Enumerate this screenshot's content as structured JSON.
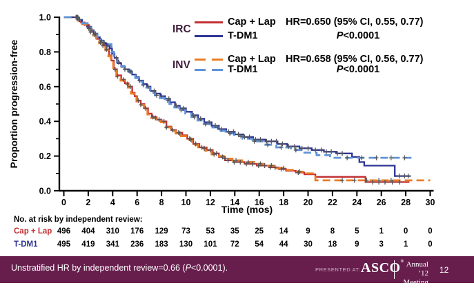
{
  "colors": {
    "irc_cap_lap": "#C22E31",
    "irc_tdm1": "#2D3494",
    "inv_cap_lap": "#E97C26",
    "inv_tdm1": "#5F93D8",
    "group_label": "#3F1D3B",
    "censor": "#555555",
    "axis": "#000000",
    "footer_bg": "#671E4D",
    "footer_text": "#FFFFFF",
    "risk_cap_lap_label": "#C22E31",
    "risk_tdm1_label": "#2D3494"
  },
  "chart_data": {
    "type": "line",
    "subtype": "kaplan-meier-step",
    "title": "",
    "xlabel": "Time (mos)",
    "ylabel": "Proportion progression-free",
    "xlim": [
      0,
      30
    ],
    "ylim": [
      0.0,
      1.0
    ],
    "x_ticks": [
      0,
      2,
      4,
      6,
      8,
      10,
      12,
      14,
      16,
      18,
      20,
      22,
      24,
      26,
      28,
      30
    ],
    "y_ticks": [
      "0.0",
      "0.2",
      "0.4",
      "0.6",
      "0.8",
      "1.0"
    ],
    "y_minor_tick_step": 0.1,
    "grid": false,
    "legend_position": "upper right",
    "series": [
      {
        "id": "irc-cap-lap",
        "name": "IRC Cap + Lap",
        "color": "irc_cap_lap",
        "style": "solid",
        "points": [
          [
            0,
            1.0
          ],
          [
            1.1,
            0.985
          ],
          [
            1.4,
            0.97
          ],
          [
            1.7,
            0.955
          ],
          [
            2.0,
            0.935
          ],
          [
            2.2,
            0.915
          ],
          [
            2.45,
            0.9
          ],
          [
            2.7,
            0.875
          ],
          [
            2.95,
            0.855
          ],
          [
            3.2,
            0.84
          ],
          [
            3.45,
            0.815
          ],
          [
            3.7,
            0.78
          ],
          [
            3.9,
            0.75
          ],
          [
            4.1,
            0.7
          ],
          [
            4.35,
            0.665
          ],
          [
            4.7,
            0.64
          ],
          [
            5.0,
            0.62
          ],
          [
            5.3,
            0.6
          ],
          [
            5.6,
            0.565
          ],
          [
            5.8,
            0.545
          ],
          [
            6.0,
            0.52
          ],
          [
            6.3,
            0.5
          ],
          [
            6.6,
            0.475
          ],
          [
            6.9,
            0.445
          ],
          [
            7.2,
            0.425
          ],
          [
            7.6,
            0.41
          ],
          [
            8.0,
            0.4
          ],
          [
            8.4,
            0.37
          ],
          [
            8.8,
            0.35
          ],
          [
            9.2,
            0.335
          ],
          [
            9.7,
            0.32
          ],
          [
            10.1,
            0.3
          ],
          [
            10.6,
            0.27
          ],
          [
            11.1,
            0.25
          ],
          [
            11.7,
            0.235
          ],
          [
            12.2,
            0.215
          ],
          [
            12.7,
            0.195
          ],
          [
            13.2,
            0.175
          ],
          [
            13.9,
            0.165
          ],
          [
            14.8,
            0.155
          ],
          [
            15.8,
            0.145
          ],
          [
            16.8,
            0.135
          ],
          [
            17.6,
            0.125
          ],
          [
            18.2,
            0.115
          ],
          [
            19.0,
            0.105
          ],
          [
            19.7,
            0.095
          ],
          [
            20.6,
            0.08
          ],
          [
            24.7,
            0.05
          ],
          [
            28.3,
            0.05
          ]
        ],
        "censors": [
          1.0,
          1.25,
          2.05,
          2.5,
          3.0,
          3.5,
          4.2,
          4.9,
          5.45,
          6.1,
          6.7,
          7.3,
          7.8,
          8.2,
          8.9,
          9.4,
          10.3,
          10.8,
          11.3,
          12.0,
          12.5,
          13.0,
          13.45,
          13.95,
          14.45,
          14.95,
          15.45,
          15.95,
          16.45,
          16.9,
          17.3,
          17.8,
          19.2,
          25.3,
          25.8,
          26.3,
          26.9,
          27.5
        ]
      },
      {
        "id": "irc-tdm1",
        "name": "IRC T-DM1",
        "color": "irc_tdm1",
        "style": "solid",
        "points": [
          [
            0,
            1.0
          ],
          [
            1.15,
            0.985
          ],
          [
            1.5,
            0.965
          ],
          [
            1.9,
            0.945
          ],
          [
            2.2,
            0.925
          ],
          [
            2.45,
            0.905
          ],
          [
            2.7,
            0.885
          ],
          [
            2.95,
            0.865
          ],
          [
            3.2,
            0.85
          ],
          [
            3.5,
            0.835
          ],
          [
            3.75,
            0.82
          ],
          [
            3.95,
            0.79
          ],
          [
            4.15,
            0.765
          ],
          [
            4.4,
            0.735
          ],
          [
            4.7,
            0.715
          ],
          [
            5.0,
            0.7
          ],
          [
            5.3,
            0.685
          ],
          [
            5.6,
            0.67
          ],
          [
            5.9,
            0.655
          ],
          [
            6.15,
            0.635
          ],
          [
            6.5,
            0.615
          ],
          [
            6.8,
            0.6
          ],
          [
            7.1,
            0.575
          ],
          [
            7.5,
            0.56
          ],
          [
            7.9,
            0.545
          ],
          [
            8.3,
            0.53
          ],
          [
            8.7,
            0.51
          ],
          [
            9.1,
            0.49
          ],
          [
            9.5,
            0.475
          ],
          [
            10.0,
            0.455
          ],
          [
            10.5,
            0.435
          ],
          [
            11.0,
            0.415
          ],
          [
            11.5,
            0.395
          ],
          [
            12.1,
            0.375
          ],
          [
            12.7,
            0.355
          ],
          [
            13.3,
            0.34
          ],
          [
            14.0,
            0.325
          ],
          [
            14.7,
            0.31
          ],
          [
            15.5,
            0.295
          ],
          [
            16.5,
            0.285
          ],
          [
            17.5,
            0.27
          ],
          [
            18.3,
            0.255
          ],
          [
            19.3,
            0.245
          ],
          [
            20.3,
            0.235
          ],
          [
            21.3,
            0.225
          ],
          [
            22.3,
            0.215
          ],
          [
            23.6,
            0.195
          ],
          [
            24.2,
            0.165
          ],
          [
            24.6,
            0.145
          ],
          [
            27.1,
            0.085
          ],
          [
            28.4,
            0.085
          ]
        ],
        "censors": [
          1.05,
          1.3,
          2.1,
          2.6,
          3.1,
          3.6,
          4.3,
          5.0,
          5.5,
          6.2,
          6.9,
          7.4,
          8.0,
          8.6,
          9.2,
          9.8,
          10.6,
          11.2,
          11.9,
          12.4,
          12.9,
          13.5,
          13.9,
          14.3,
          14.8,
          15.2,
          15.7,
          16.1,
          16.6,
          17.0,
          17.4,
          17.9,
          18.4,
          18.9,
          19.5,
          20.0,
          20.6,
          21.1,
          21.5,
          21.9,
          22.4,
          22.8,
          27.5,
          27.9,
          28.2
        ]
      },
      {
        "id": "inv-cap-lap",
        "name": "INV Cap + Lap",
        "color": "inv_cap_lap",
        "style": "dashed",
        "points": [
          [
            0,
            1.0
          ],
          [
            1.15,
            0.98
          ],
          [
            1.5,
            0.96
          ],
          [
            1.85,
            0.94
          ],
          [
            2.15,
            0.915
          ],
          [
            2.4,
            0.895
          ],
          [
            2.65,
            0.87
          ],
          [
            2.9,
            0.85
          ],
          [
            3.15,
            0.835
          ],
          [
            3.4,
            0.81
          ],
          [
            3.65,
            0.775
          ],
          [
            3.85,
            0.745
          ],
          [
            4.05,
            0.695
          ],
          [
            4.3,
            0.66
          ],
          [
            4.65,
            0.635
          ],
          [
            4.95,
            0.615
          ],
          [
            5.25,
            0.595
          ],
          [
            5.5,
            0.56
          ],
          [
            5.75,
            0.54
          ],
          [
            5.95,
            0.515
          ],
          [
            6.25,
            0.495
          ],
          [
            6.55,
            0.47
          ],
          [
            6.85,
            0.44
          ],
          [
            7.15,
            0.42
          ],
          [
            7.55,
            0.405
          ],
          [
            7.95,
            0.395
          ],
          [
            8.35,
            0.365
          ],
          [
            8.75,
            0.345
          ],
          [
            9.15,
            0.33
          ],
          [
            9.6,
            0.315
          ],
          [
            10.0,
            0.295
          ],
          [
            10.5,
            0.265
          ],
          [
            11.0,
            0.245
          ],
          [
            11.6,
            0.23
          ],
          [
            12.1,
            0.21
          ],
          [
            12.6,
            0.2
          ],
          [
            13.1,
            0.185
          ],
          [
            13.8,
            0.175
          ],
          [
            14.6,
            0.165
          ],
          [
            15.6,
            0.155
          ],
          [
            16.6,
            0.145
          ],
          [
            17.4,
            0.13
          ],
          [
            18.1,
            0.12
          ],
          [
            18.9,
            0.11
          ],
          [
            19.6,
            0.1
          ],
          [
            20.6,
            0.06
          ],
          [
            30,
            0.06
          ]
        ],
        "censors": [
          1.1,
          2.2,
          3.2,
          4.4,
          5.2,
          6.3,
          7.5,
          8.4,
          9.5,
          10.4,
          11.5,
          12.3,
          13.2,
          14.1,
          15.1,
          16.1,
          17.0,
          18.0,
          19.3,
          22.8,
          23.8,
          24.8,
          25.8,
          26.8
        ]
      },
      {
        "id": "inv-tdm1",
        "name": "INV T-DM1",
        "color": "inv_tdm1",
        "style": "dashed",
        "points": [
          [
            0,
            1.0
          ],
          [
            1.2,
            0.985
          ],
          [
            1.55,
            0.965
          ],
          [
            1.95,
            0.945
          ],
          [
            2.25,
            0.925
          ],
          [
            2.5,
            0.905
          ],
          [
            2.75,
            0.885
          ],
          [
            3.0,
            0.865
          ],
          [
            3.2,
            0.855
          ],
          [
            3.45,
            0.845
          ],
          [
            3.9,
            0.8
          ],
          [
            4.1,
            0.77
          ],
          [
            4.35,
            0.74
          ],
          [
            4.65,
            0.72
          ],
          [
            4.95,
            0.705
          ],
          [
            5.25,
            0.69
          ],
          [
            5.55,
            0.67
          ],
          [
            5.85,
            0.65
          ],
          [
            6.1,
            0.63
          ],
          [
            6.45,
            0.61
          ],
          [
            6.75,
            0.595
          ],
          [
            7.05,
            0.565
          ],
          [
            7.45,
            0.55
          ],
          [
            7.85,
            0.535
          ],
          [
            8.25,
            0.52
          ],
          [
            8.65,
            0.5
          ],
          [
            9.05,
            0.48
          ],
          [
            9.45,
            0.465
          ],
          [
            9.95,
            0.445
          ],
          [
            10.45,
            0.425
          ],
          [
            10.95,
            0.405
          ],
          [
            11.45,
            0.385
          ],
          [
            12.05,
            0.365
          ],
          [
            12.65,
            0.345
          ],
          [
            13.25,
            0.33
          ],
          [
            13.95,
            0.315
          ],
          [
            14.65,
            0.3
          ],
          [
            15.45,
            0.285
          ],
          [
            16.3,
            0.265
          ],
          [
            17.4,
            0.25
          ],
          [
            18.6,
            0.235
          ],
          [
            19.7,
            0.22
          ],
          [
            20.7,
            0.205
          ],
          [
            21.8,
            0.19
          ],
          [
            28.6,
            0.19
          ]
        ],
        "censors": [
          1.15,
          2.3,
          3.3,
          4.5,
          5.4,
          6.5,
          7.6,
          8.5,
          9.6,
          10.7,
          11.6,
          12.6,
          13.6,
          14.5,
          15.6,
          16.7,
          17.8,
          19.0,
          23.2,
          24.4,
          25.6,
          26.8,
          27.9
        ]
      }
    ]
  },
  "legend": {
    "groups": [
      {
        "name": "IRC",
        "rows": [
          {
            "label": "Cap + Lap",
            "swatch": "irc_cap_lap|solid",
            "stat": "HR=0.650 (95% CI, 0.55, 0.77)"
          },
          {
            "label": "T-DM1",
            "swatch": "irc_tdm1|solid",
            "p_prefix": "P",
            "p_value": "<0.0001"
          }
        ]
      },
      {
        "name": "INV",
        "rows": [
          {
            "label": "Cap + Lap",
            "swatch": "inv_cap_lap|dashed",
            "stat": "HR=0.658 (95% CI, 0.56, 0.77)"
          },
          {
            "label": "T-DM1",
            "swatch": "inv_tdm1|dashed",
            "p_prefix": "P",
            "p_value": "<0.0001"
          }
        ]
      }
    ]
  },
  "risk_table": {
    "title": "No. at risk by independent review:",
    "rows": [
      {
        "label": "Cap + Lap",
        "color": "risk_cap_lap_label",
        "values": [
          496,
          404,
          310,
          176,
          129,
          73,
          53,
          35,
          25,
          14,
          9,
          8,
          5,
          1,
          0,
          0
        ]
      },
      {
        "label": "T-DM1",
        "color": "risk_tdm1_label",
        "values": [
          495,
          419,
          341,
          236,
          183,
          130,
          101,
          72,
          54,
          44,
          30,
          18,
          9,
          3,
          1,
          0
        ]
      }
    ]
  },
  "footer": {
    "note_part1": "Unstratified HR by independent review=0.66 (",
    "note_p": "P",
    "note_part2": "<0.0001).",
    "presented_at": "PRESENTED AT:",
    "logo_text": "ASCO",
    "logo_reg": "®",
    "annual_line1": "Annual ’12",
    "annual_line2": "Meeting",
    "page_number": "12"
  }
}
